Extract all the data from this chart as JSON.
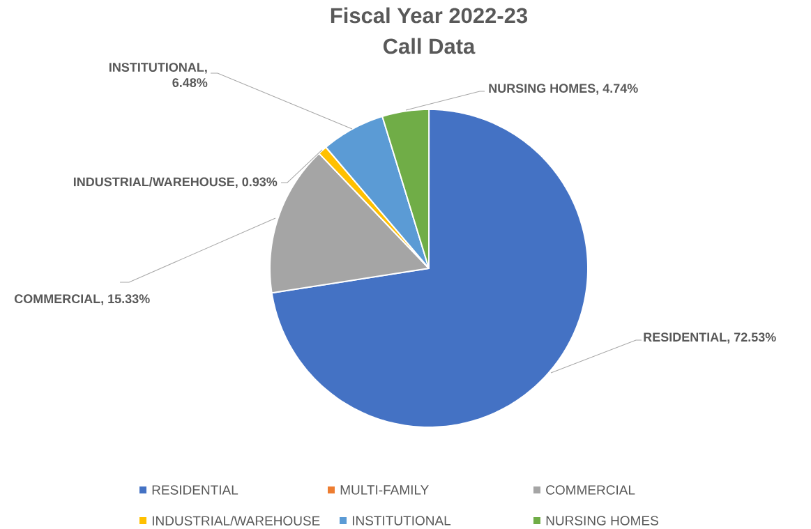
{
  "chart_data": {
    "type": "pie",
    "title": "Fiscal Year 2022-23",
    "subtitle": "Call Data",
    "categories": [
      "RESIDENTIAL",
      "MULTI-FAMILY",
      "COMMERCIAL",
      "INDUSTRIAL/WAREHOUSE",
      "INSTITUTIONAL",
      "NURSING HOMES"
    ],
    "values": [
      72.53,
      0,
      15.33,
      0.93,
      6.48,
      4.74
    ],
    "colors": [
      "#4472c4",
      "#ed7d31",
      "#a5a5a5",
      "#ffc000",
      "#5b9bd5",
      "#70ad47"
    ],
    "value_labels": [
      "RESIDENTIAL, 72.53%",
      null,
      "COMMERCIAL, 15.33%",
      "INDUSTRIAL/WAREHOUSE, 0.93%",
      "INSTITUTIONAL, 6.48%",
      "NURSING HOMES, 4.74%"
    ],
    "legend": "bottom"
  }
}
